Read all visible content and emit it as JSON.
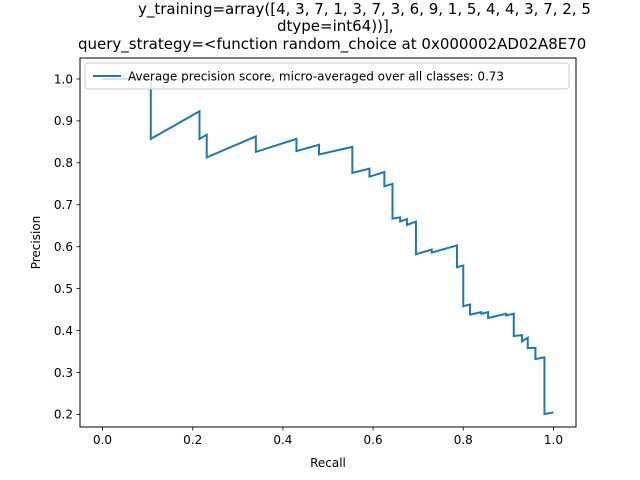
{
  "chart_data": {
    "type": "line",
    "title_lines": [
      "y_training=array([4, 3, 7, 1, 3, 7, 3, 6, 9, 1, 5, 4, 4, 3, 7, 2, 5",
      "dtype=int64))],",
      "query_strategy=<function random_choice at 0x000002AD02A8E70"
    ],
    "xlabel": "Recall",
    "ylabel": "Precision",
    "xlim": [
      -0.05,
      1.05
    ],
    "ylim": [
      0.17,
      1.05
    ],
    "xticks": [
      "0.0",
      "0.2",
      "0.4",
      "0.6",
      "0.8",
      "1.0"
    ],
    "yticks": [
      "0.2",
      "0.3",
      "0.4",
      "0.5",
      "0.6",
      "0.7",
      "0.8",
      "0.9",
      "1.0"
    ],
    "grid": false,
    "legend_position": "top-left",
    "series": [
      {
        "name": "Average precision score, micro-averaged over all classes: 0.73",
        "color": "#1f77b4",
        "step_curve": true,
        "points": [
          [
            0.0,
            1.0
          ],
          [
            0.107,
            1.0
          ],
          [
            0.107,
            0.857
          ],
          [
            0.215,
            0.923
          ],
          [
            0.215,
            0.857
          ],
          [
            0.231,
            0.867
          ],
          [
            0.231,
            0.813
          ],
          [
            0.34,
            0.863
          ],
          [
            0.34,
            0.826
          ],
          [
            0.43,
            0.857
          ],
          [
            0.43,
            0.828
          ],
          [
            0.48,
            0.843
          ],
          [
            0.48,
            0.82
          ],
          [
            0.554,
            0.838
          ],
          [
            0.554,
            0.776
          ],
          [
            0.592,
            0.786
          ],
          [
            0.592,
            0.767
          ],
          [
            0.625,
            0.778
          ],
          [
            0.625,
            0.744
          ],
          [
            0.643,
            0.75
          ],
          [
            0.643,
            0.667
          ],
          [
            0.66,
            0.67
          ],
          [
            0.66,
            0.66
          ],
          [
            0.675,
            0.666
          ],
          [
            0.675,
            0.652
          ],
          [
            0.695,
            0.66
          ],
          [
            0.695,
            0.582
          ],
          [
            0.73,
            0.593
          ],
          [
            0.73,
            0.586
          ],
          [
            0.786,
            0.603
          ],
          [
            0.786,
            0.551
          ],
          [
            0.8,
            0.555
          ],
          [
            0.8,
            0.458
          ],
          [
            0.815,
            0.462
          ],
          [
            0.815,
            0.438
          ],
          [
            0.84,
            0.444
          ],
          [
            0.84,
            0.44
          ],
          [
            0.855,
            0.444
          ],
          [
            0.855,
            0.43
          ],
          [
            0.895,
            0.44
          ],
          [
            0.895,
            0.436
          ],
          [
            0.912,
            0.44
          ],
          [
            0.912,
            0.387
          ],
          [
            0.93,
            0.389
          ],
          [
            0.93,
            0.374
          ],
          [
            0.943,
            0.383
          ],
          [
            0.943,
            0.358
          ],
          [
            0.96,
            0.359
          ],
          [
            0.96,
            0.332
          ],
          [
            0.98,
            0.336
          ],
          [
            0.98,
            0.201
          ],
          [
            1.0,
            0.205
          ]
        ]
      }
    ]
  }
}
